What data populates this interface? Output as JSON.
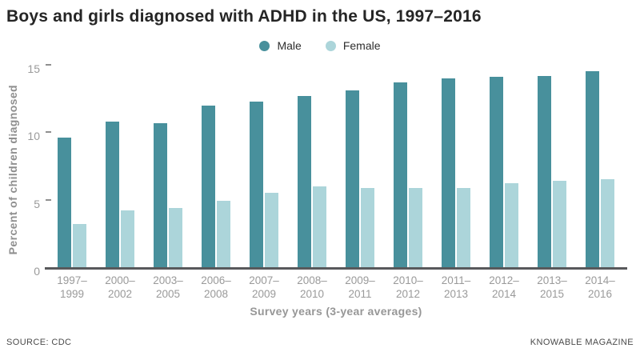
{
  "title": "Boys and girls diagnosed with ADHD in the US, 1997–2016",
  "chart_data": {
    "type": "bar",
    "title": "Boys and girls diagnosed with ADHD in the US, 1997–2016",
    "categories": [
      "1997–1999",
      "2000–2002",
      "2003–2005",
      "2006–2008",
      "2007–2009",
      "2008–2010",
      "2009–2011",
      "2010–2012",
      "2011–2013",
      "2012–2014",
      "2013–2015",
      "2014–2016"
    ],
    "series": [
      {
        "name": "Male",
        "color": "#48909c",
        "values": [
          9.6,
          10.8,
          10.7,
          12.0,
          12.3,
          12.7,
          13.1,
          13.7,
          14.0,
          14.1,
          14.2,
          14.5
        ]
      },
      {
        "name": "Female",
        "color": "#acd5da",
        "values": [
          3.2,
          4.2,
          4.4,
          4.9,
          5.5,
          6.0,
          5.9,
          5.9,
          5.9,
          6.2,
          6.4,
          6.5
        ]
      }
    ],
    "xlabel": "Survey years (3-year averages)",
    "ylabel": "Percent of children diagnosed",
    "ylim": [
      0,
      15
    ],
    "yticks": [
      0,
      5,
      10,
      15
    ],
    "grid": false,
    "legend_position": "top-center",
    "axis_line_color": "#58595b"
  },
  "footer": {
    "source": "SOURCE: CDC",
    "credit": "KNOWABLE MAGAZINE"
  }
}
